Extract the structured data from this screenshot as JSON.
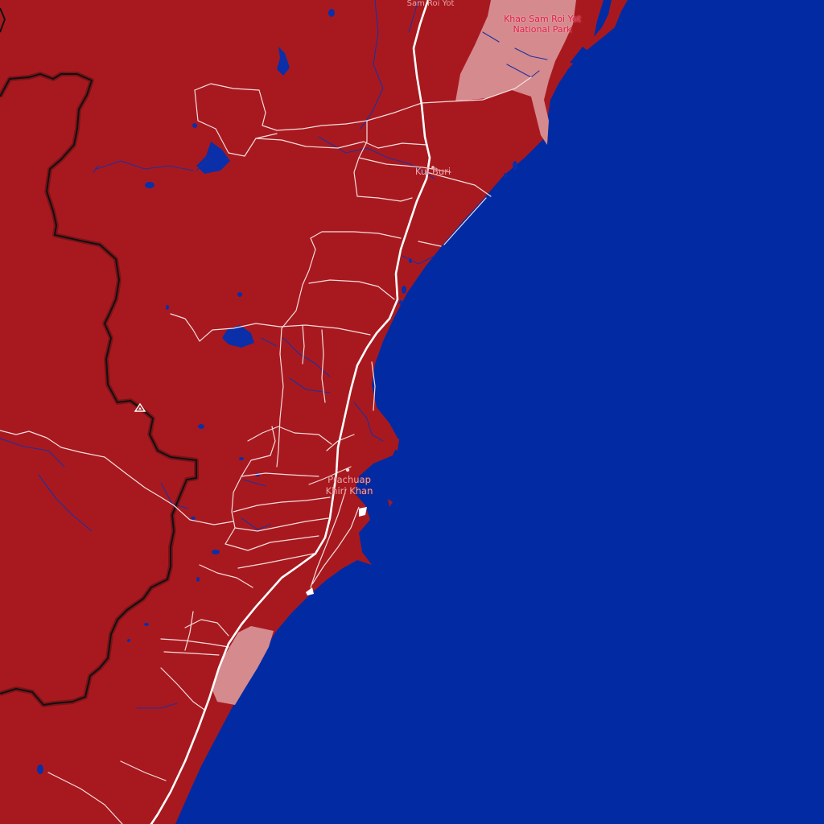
{
  "colors": {
    "sea": "#022ba3",
    "land": "#a8191f",
    "park": "#d58a8e",
    "roads": "#f4dede",
    "rivers": "#1f2fa0",
    "border": "#111111"
  },
  "labels": {
    "sam_roi_yot": "Sam Roi Yot",
    "park_line1": "Khao Sam Roi Yot",
    "park_line2": "National Park",
    "kui_buri": "Kui Buri",
    "prachuap_line1": "Prachuap",
    "prachuap_line2": "Khiri Khan"
  },
  "icons": {
    "peak": "mountain-peak-icon",
    "town": "town-marker-icon"
  }
}
